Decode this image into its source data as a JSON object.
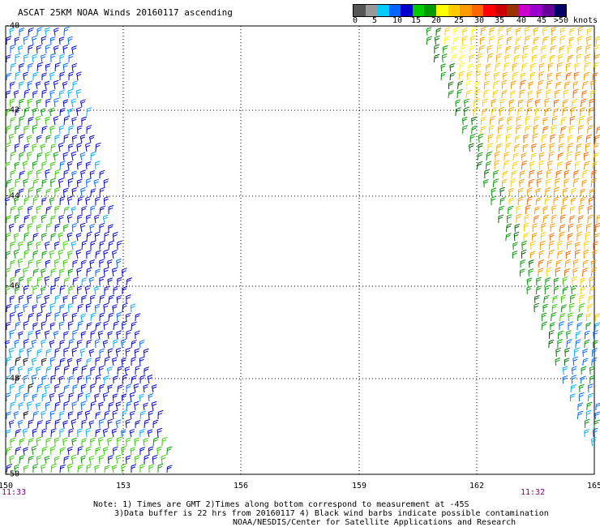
{
  "title": "ASCAT 25KM NOAA Winds 20160117 ascending",
  "legend": {
    "colors": [
      "#555555",
      "#999999",
      "#00ccff",
      "#0066ff",
      "#0000cc",
      "#00cc00",
      "#009900",
      "#ffff00",
      "#ffcc00",
      "#ff9900",
      "#ff6600",
      "#ff0000",
      "#cc0000",
      "#993300",
      "#cc00cc",
      "#9900cc",
      "#660099",
      "#000066"
    ],
    "labels": [
      "0",
      "5",
      "10",
      "15",
      "20",
      "25",
      "30",
      "35",
      "40",
      "45",
      ">50 knots"
    ]
  },
  "x_ticks": [
    "150",
    "153",
    "156",
    "159",
    "162",
    "165"
  ],
  "y_ticks": [
    "-40",
    "-42",
    "-44",
    "-46",
    "-48",
    "-50"
  ],
  "times": {
    "left": "11:33",
    "right": "11:32"
  },
  "notes": [
    "Note: 1) Times are GMT 2)Times along bottom correspond to measurement at -45S",
    "3)Data buffer is 22 hrs from 20160117 4) Black wind barbs indicate possible contamination",
    "NOAA/NESDIS/Center for Satellite Applications and Research"
  ]
}
